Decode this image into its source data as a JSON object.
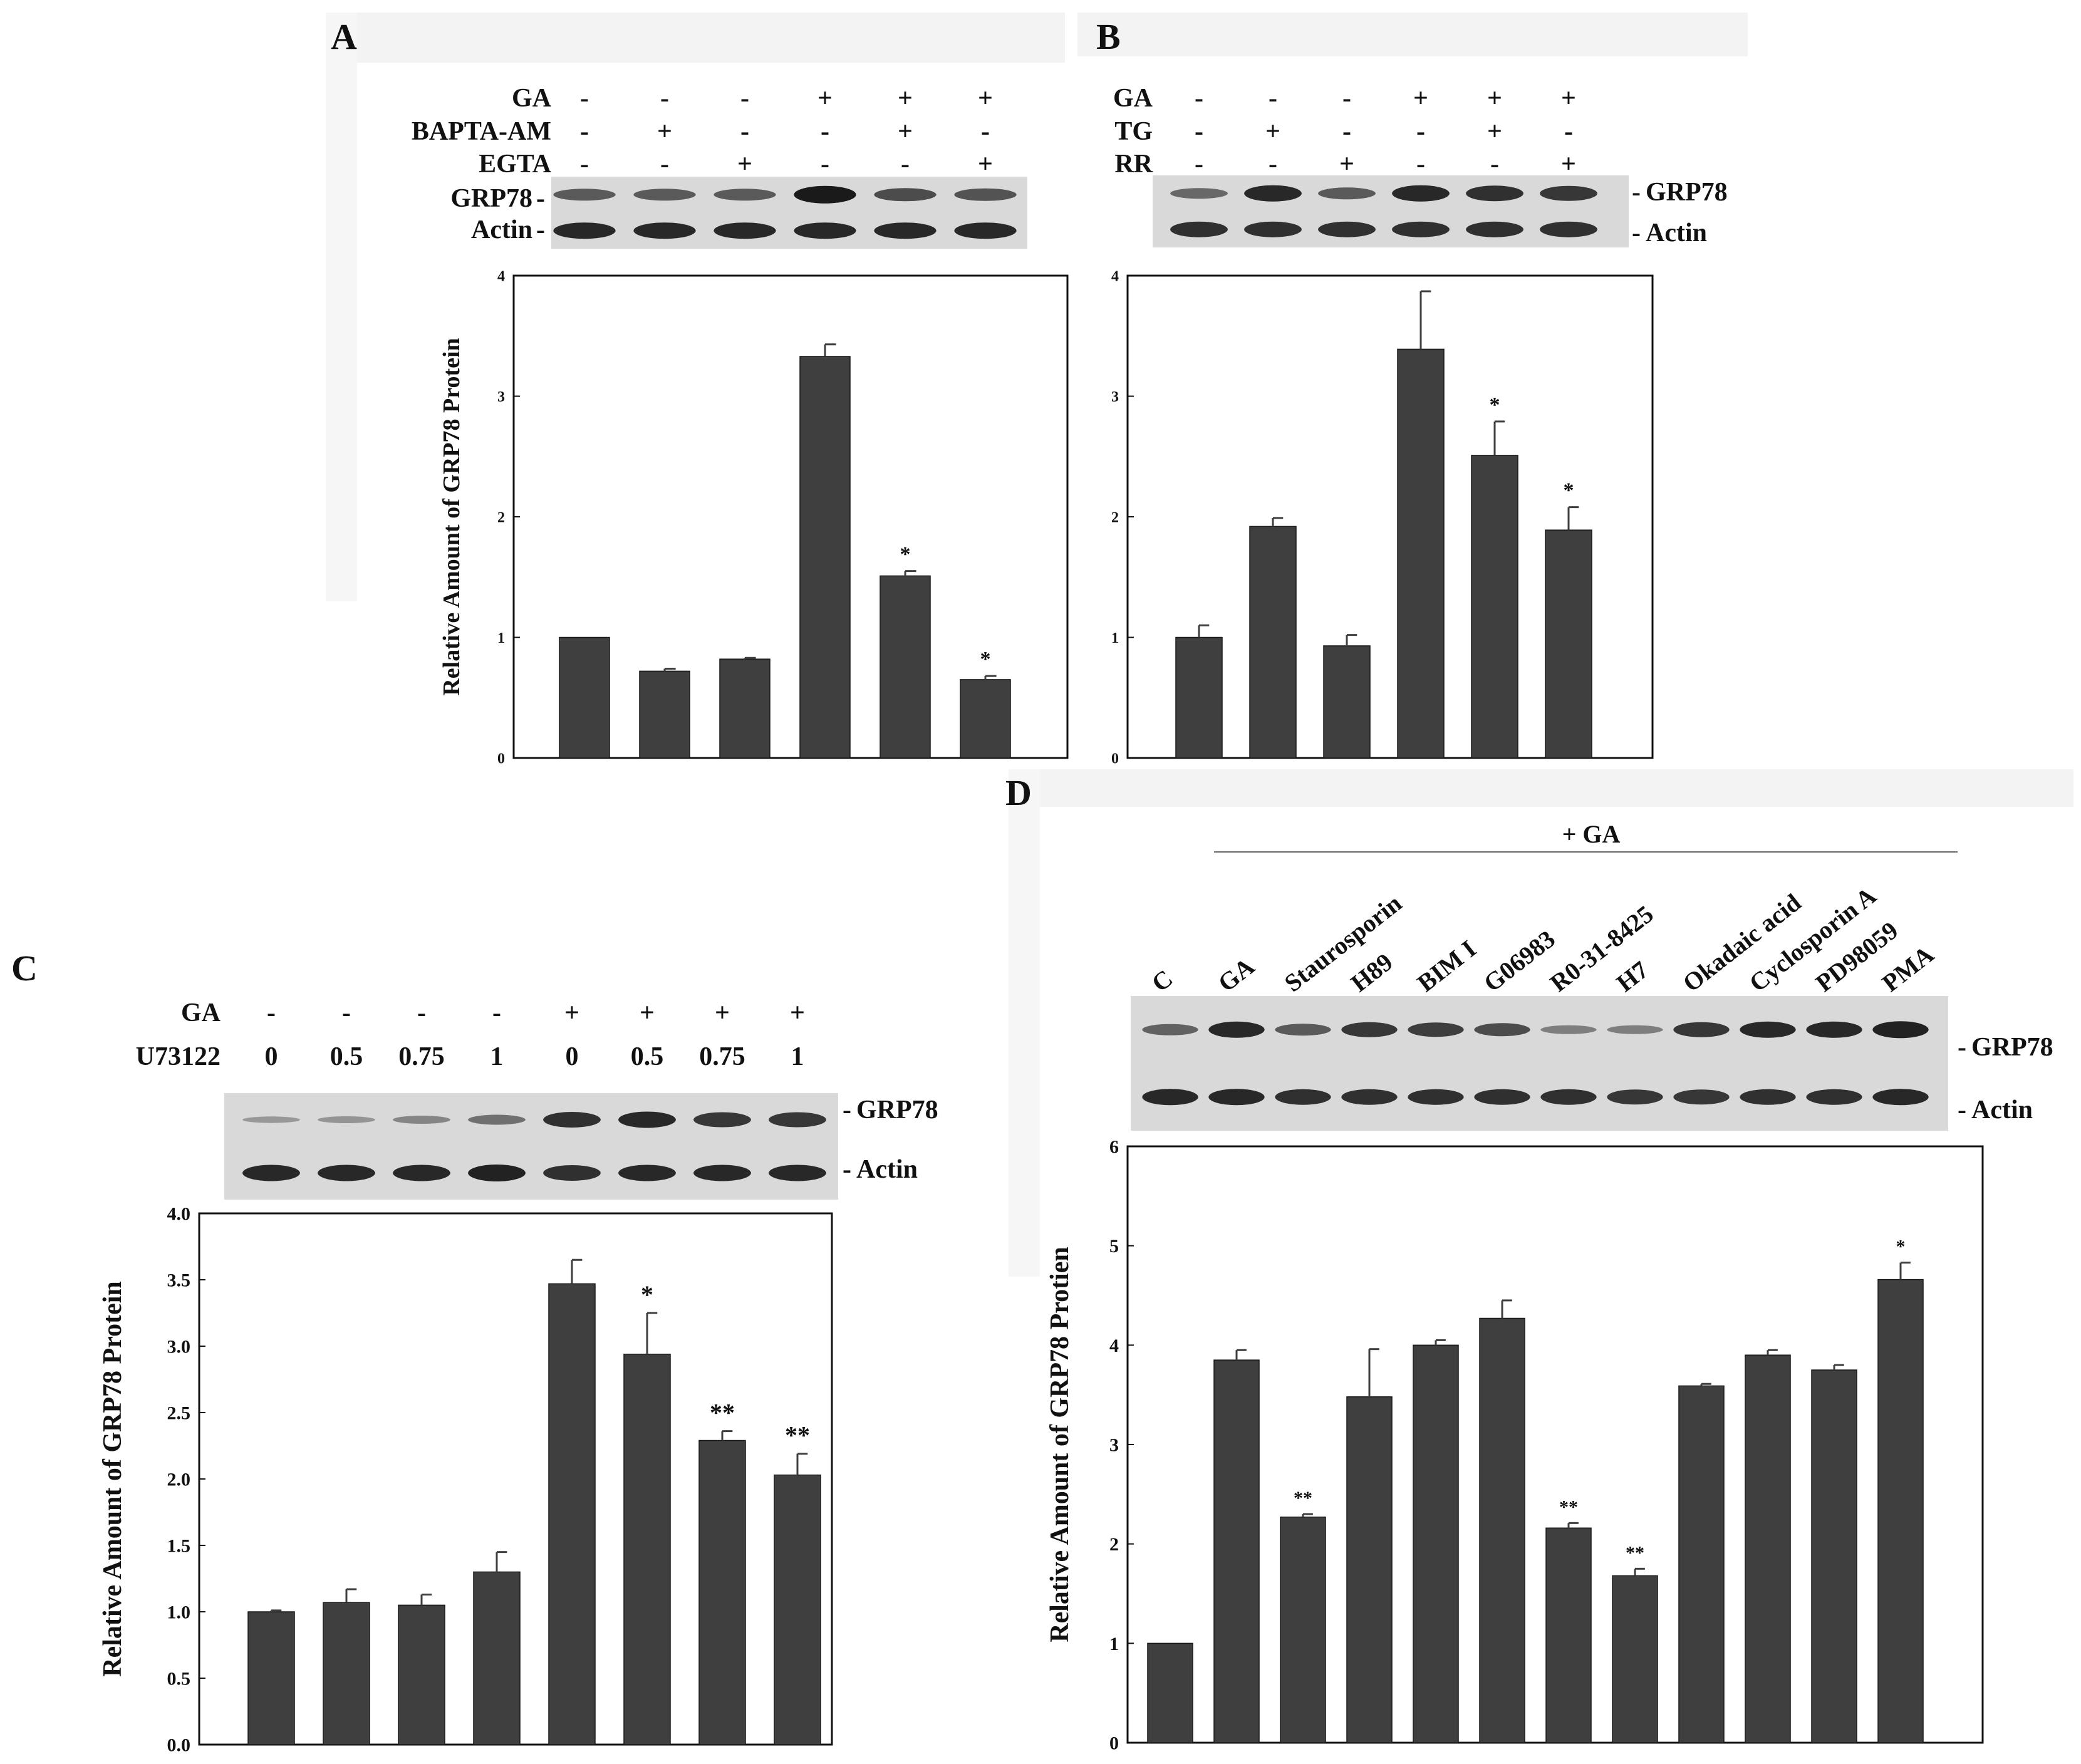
{
  "colors": {
    "bar": "#3f3f3f",
    "axis": "#111111",
    "blot_bg": "#d9d9d9",
    "band": "#1a1a1a",
    "panel_shade": "#f3f3f3"
  },
  "chart_data": [
    {
      "panel": "A",
      "type": "bar",
      "conditions": [
        {
          "name": "GA",
          "marks": [
            "-",
            "-",
            "-",
            "+",
            "+",
            "+"
          ]
        },
        {
          "name": "BAPTA-AM",
          "marks": [
            "-",
            "+",
            "-",
            "-",
            "+",
            "-"
          ]
        },
        {
          "name": "EGTA",
          "marks": [
            "-",
            "-",
            "+",
            "-",
            "-",
            "+"
          ]
        }
      ],
      "blot_labels": [
        "GRP78",
        "Actin"
      ],
      "values": [
        1.0,
        0.72,
        0.82,
        3.33,
        1.51,
        0.65
      ],
      "errors": [
        0.0,
        0.02,
        0.01,
        0.1,
        0.04,
        0.03
      ],
      "significance": [
        "",
        "",
        "",
        "",
        "*",
        "*"
      ],
      "ylabel": "Relative Amount of GRP78 Protein",
      "ylim": [
        0,
        4
      ],
      "yticks": [
        "0",
        "1",
        "2",
        "3",
        "4"
      ]
    },
    {
      "panel": "B",
      "type": "bar",
      "conditions": [
        {
          "name": "GA",
          "marks": [
            "-",
            "-",
            "-",
            "+",
            "+",
            "+"
          ]
        },
        {
          "name": "TG",
          "marks": [
            "-",
            "+",
            "-",
            "-",
            "+",
            "-"
          ]
        },
        {
          "name": "RR",
          "marks": [
            "-",
            "-",
            "+",
            "-",
            "-",
            "+"
          ]
        }
      ],
      "blot_labels": [
        "GRP78",
        "Actin"
      ],
      "values": [
        1.0,
        1.92,
        0.93,
        3.39,
        2.51,
        1.89
      ],
      "errors": [
        0.1,
        0.07,
        0.09,
        0.48,
        0.28,
        0.19
      ],
      "significance": [
        "",
        "",
        "",
        "",
        "*",
        "*"
      ],
      "ylabel": "",
      "ylim": [
        0,
        4
      ],
      "yticks": [
        "0",
        "1",
        "2",
        "3",
        "4"
      ]
    },
    {
      "panel": "C",
      "type": "bar",
      "conditions": [
        {
          "name": "GA",
          "marks": [
            "-",
            "-",
            "-",
            "-",
            "+",
            "+",
            "+",
            "+"
          ]
        },
        {
          "name": "U73122",
          "marks": [
            "0",
            "0.5",
            "0.75",
            "1",
            "0",
            "0.5",
            "0.75",
            "1"
          ]
        }
      ],
      "blot_labels": [
        "GRP78",
        "Actin"
      ],
      "values": [
        1.0,
        1.07,
        1.05,
        1.3,
        3.47,
        2.94,
        2.29,
        2.03
      ],
      "errors": [
        0.01,
        0.1,
        0.08,
        0.15,
        0.18,
        0.31,
        0.07,
        0.16
      ],
      "significance": [
        "",
        "",
        "",
        "",
        "",
        "*",
        "**",
        "**"
      ],
      "ylabel": "Relative Amount of GRP78 Protein",
      "ylim": [
        0,
        4
      ],
      "yticks": [
        "0.0",
        "0.5",
        "1.0",
        "1.5",
        "2.0",
        "2.5",
        "3.0",
        "3.5",
        "4.0"
      ]
    },
    {
      "panel": "D",
      "type": "bar",
      "group_label": "+ GA",
      "categories": [
        "C",
        "GA",
        "Staurosporin",
        "H89",
        "BIM I",
        "G06983",
        "R0-31-8425",
        "H7",
        "Okadaic acid",
        "Cyclosporin A",
        "PD98059",
        "PMA"
      ],
      "blot_labels": [
        "GRP78",
        "Actin"
      ],
      "values": [
        1.0,
        3.85,
        2.27,
        3.48,
        4.0,
        4.27,
        2.16,
        1.68,
        3.59,
        3.9,
        3.75,
        4.66
      ],
      "errors": [
        0.0,
        0.1,
        0.03,
        0.48,
        0.05,
        0.18,
        0.05,
        0.07,
        0.02,
        0.05,
        0.05,
        0.17
      ],
      "significance": [
        "",
        "",
        "**",
        "",
        "",
        "",
        "**",
        "**",
        "",
        "",
        "",
        "*"
      ],
      "ylabel": "Relative Amount of GRP78 Protien",
      "ylim": [
        0,
        6
      ],
      "yticks": [
        "0",
        "1",
        "2",
        "3",
        "4",
        "5",
        "6"
      ]
    }
  ],
  "blot_bands": {
    "A": {
      "grp78": [
        0.55,
        0.55,
        0.55,
        1.0,
        0.65,
        0.6
      ],
      "actin": [
        0.9,
        0.9,
        0.9,
        0.9,
        0.9,
        0.9
      ]
    },
    "B": {
      "grp78": [
        0.45,
        0.9,
        0.55,
        0.9,
        0.85,
        0.8
      ],
      "actin": [
        0.85,
        0.85,
        0.85,
        0.85,
        0.85,
        0.85
      ]
    },
    "C": {
      "grp78": [
        0.12,
        0.15,
        0.25,
        0.4,
        0.85,
        0.9,
        0.8,
        0.8
      ],
      "actin": [
        0.9,
        0.9,
        0.9,
        0.95,
        0.85,
        0.9,
        0.9,
        0.9
      ]
    },
    "D": {
      "grp78": [
        0.5,
        0.9,
        0.55,
        0.8,
        0.75,
        0.65,
        0.3,
        0.3,
        0.8,
        0.9,
        0.9,
        0.95
      ],
      "actin": [
        0.9,
        0.9,
        0.85,
        0.85,
        0.85,
        0.85,
        0.85,
        0.8,
        0.8,
        0.85,
        0.85,
        0.9
      ]
    }
  }
}
